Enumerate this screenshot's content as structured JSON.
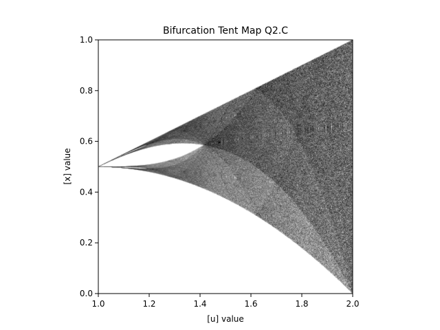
{
  "chart_data": {
    "type": "scatter",
    "title": "Bifurcation Tent Map Q2.C",
    "xlabel": "[u] value",
    "ylabel": "[x] value",
    "xlim": [
      1.0,
      2.0
    ],
    "ylim": [
      0.0,
      1.0
    ],
    "xticks": [
      "1.0",
      "1.2",
      "1.4",
      "1.6",
      "1.8",
      "2.0"
    ],
    "yticks": [
      "0.0",
      "0.2",
      "0.4",
      "0.6",
      "0.8",
      "1.0"
    ],
    "grid": false,
    "legend": "none",
    "map": "tent map x_{n+1} = u * min(x_n, 1 - x_n)",
    "u_range": [
      1.0,
      2.0
    ],
    "initial_x": 0.5,
    "envelope": {
      "upper": "x = u / 2",
      "lower": "x = u * (1 - u / 2)",
      "merge_point": {
        "u": 1.414,
        "x": 0.586
      }
    },
    "point_color": "#000000"
  }
}
